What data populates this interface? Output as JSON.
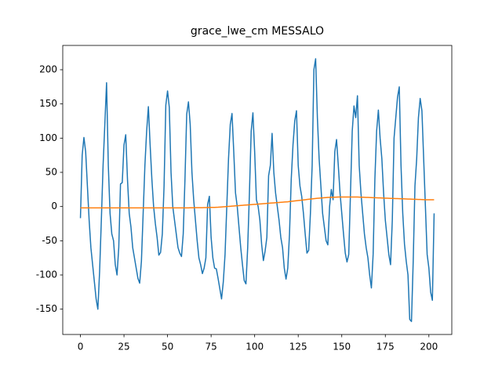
{
  "chart_data": {
    "type": "line",
    "title": "grace_lwe_cm MESSALO",
    "x": [
      0,
      1,
      2,
      3,
      4,
      5,
      6,
      7,
      8,
      9,
      10,
      11,
      12,
      13,
      14,
      15,
      16,
      17,
      18,
      19,
      20,
      21,
      22,
      23,
      24,
      25,
      26,
      27,
      28,
      29,
      30,
      31,
      32,
      33,
      34,
      35,
      36,
      37,
      38,
      39,
      40,
      41,
      42,
      43,
      44,
      45,
      46,
      47,
      48,
      49,
      50,
      51,
      52,
      53,
      54,
      55,
      56,
      57,
      58,
      59,
      60,
      61,
      62,
      63,
      64,
      65,
      66,
      67,
      68,
      69,
      70,
      71,
      72,
      73,
      74,
      75,
      76,
      77,
      78,
      79,
      80,
      81,
      82,
      83,
      84,
      85,
      86,
      87,
      88,
      89,
      90,
      91,
      92,
      93,
      94,
      95,
      96,
      97,
      98,
      99,
      100,
      101,
      102,
      103,
      104,
      105,
      106,
      107,
      108,
      109,
      110,
      111,
      112,
      113,
      114,
      115,
      116,
      117,
      118,
      119,
      120,
      121,
      122,
      123,
      124,
      125,
      126,
      127,
      128,
      129,
      130,
      131,
      132,
      133,
      134,
      135,
      136,
      137,
      138,
      139,
      140,
      141,
      142,
      143,
      144,
      145,
      146,
      147,
      148,
      149,
      150,
      151,
      152,
      153,
      154,
      155,
      156,
      157,
      158,
      159,
      160,
      161,
      162,
      163,
      164,
      165,
      166,
      167,
      168,
      169,
      170,
      171,
      172,
      173,
      174,
      175,
      176,
      177,
      178,
      179,
      180,
      181,
      182,
      183,
      184,
      185,
      186,
      187,
      188,
      189,
      190,
      191,
      192,
      193,
      194,
      195,
      196,
      197,
      198,
      199,
      200,
      201,
      202,
      203
    ],
    "series": [
      {
        "color": "#1f77b4",
        "values": [
          -17,
          75,
          101,
          80,
          30,
          -20,
          -60,
          -85,
          -110,
          -135,
          -150,
          -95,
          -20,
          60,
          120,
          181,
          60,
          -10,
          -40,
          -50,
          -85,
          -100,
          -60,
          33,
          35,
          90,
          105,
          40,
          -10,
          -30,
          -60,
          -75,
          -90,
          -105,
          -112,
          -80,
          -10,
          60,
          110,
          146,
          90,
          40,
          0,
          -25,
          -45,
          -71,
          -67,
          -40,
          30,
          148,
          169,
          145,
          50,
          0,
          -20,
          -40,
          -60,
          -68,
          -73,
          -40,
          40,
          135,
          153,
          120,
          50,
          10,
          -20,
          -50,
          -75,
          -85,
          -98,
          -90,
          -75,
          3,
          15,
          -45,
          -75,
          -90,
          -91,
          -105,
          -120,
          -135,
          -110,
          -70,
          0,
          70,
          120,
          136,
          80,
          20,
          0,
          -30,
          -60,
          -85,
          -108,
          -113,
          -60,
          20,
          110,
          137,
          80,
          10,
          0,
          -20,
          -55,
          -79,
          -65,
          -45,
          45,
          60,
          107,
          50,
          20,
          0,
          -20,
          -45,
          -60,
          -90,
          -106,
          -90,
          -40,
          40,
          90,
          125,
          140,
          60,
          30,
          15,
          -10,
          -40,
          -68,
          -64,
          -10,
          60,
          200,
          216,
          130,
          70,
          30,
          -10,
          -30,
          -50,
          -56,
          0,
          25,
          10,
          80,
          98,
          60,
          20,
          -10,
          -40,
          -68,
          -81,
          -70,
          20,
          110,
          147,
          130,
          162,
          60,
          20,
          -10,
          -40,
          -60,
          -75,
          -100,
          -119,
          -70,
          40,
          110,
          141,
          100,
          70,
          20,
          -20,
          -45,
          -70,
          -85,
          -20,
          100,
          130,
          160,
          175,
          60,
          -10,
          -55,
          -80,
          -100,
          -165,
          -168,
          -80,
          30,
          70,
          130,
          158,
          140,
          70,
          0,
          -70,
          -90,
          -125,
          -137,
          -10
        ]
      },
      {
        "color": "#ff7f0e",
        "values": [
          -2,
          -2,
          -2,
          -2,
          -2,
          -2,
          -2,
          -2,
          -2,
          -2,
          -2,
          -2,
          -2,
          -2,
          -2,
          -2,
          -2,
          -2,
          -2,
          -2,
          -2,
          -2,
          -2,
          -2,
          -2,
          -2,
          -2,
          -2,
          -2,
          -2,
          -2,
          -2,
          -2,
          -2,
          -2,
          -2,
          -2,
          -2,
          -2,
          -2,
          -2,
          -2,
          -2,
          -2,
          -2,
          -2,
          -2,
          -2,
          -2,
          -2,
          -2,
          -2,
          -2,
          -2,
          -2,
          -2,
          -2,
          -2,
          -2,
          -2,
          -1.9,
          -1.9,
          -1.9,
          -1.8,
          -1.8,
          -1.8,
          -1.7,
          -1.7,
          -1.7,
          -1.6,
          -1.6,
          -1.5,
          -1.5,
          -1.4,
          -1.4,
          -1.3,
          -1.3,
          -1.2,
          -1.1,
          -1.0,
          -0.8,
          -0.6,
          -0.4,
          -0.2,
          0,
          0.2,
          0.4,
          0.6,
          0.8,
          1.0,
          1.2,
          1.4,
          1.6,
          1.8,
          2.0,
          2.2,
          2.4,
          2.6,
          2.8,
          3.0,
          3.2,
          3.4,
          3.6,
          3.8,
          4.0,
          4.2,
          4.4,
          4.6,
          4.8,
          5.0,
          5.2,
          5.4,
          5.6,
          5.8,
          6.0,
          6.2,
          6.4,
          6.6,
          6.8,
          7.0,
          7.3,
          7.6,
          7.9,
          8.2,
          8.5,
          8.8,
          9.1,
          9.4,
          9.7,
          10,
          10.3,
          10.6,
          10.9,
          11.2,
          11.5,
          11.8,
          12.1,
          12.3,
          12.5,
          12.7,
          12.9,
          13.1,
          13.3,
          13.4,
          13.5,
          13.6,
          13.7,
          13.8,
          13.9,
          14,
          14,
          14,
          14,
          14,
          14,
          14,
          14,
          14,
          13.9,
          13.9,
          13.8,
          13.7,
          13.6,
          13.5,
          13.4,
          13.3,
          13.2,
          13.1,
          13,
          12.9,
          12.8,
          12.7,
          12.6,
          12.5,
          12.4,
          12.3,
          12.2,
          12.1,
          12,
          11.9,
          11.8,
          11.7,
          11.6,
          11.5,
          11.4,
          11.3,
          11.2,
          11.1,
          11,
          10.9,
          10.8,
          10.7,
          10.6,
          10.5,
          10.4,
          10.3,
          10.2,
          10.1,
          10,
          10,
          10,
          10,
          10,
          10
        ]
      }
    ],
    "xlim": [
      -10.15,
      213.15
    ],
    "xticks": [
      0,
      25,
      50,
      75,
      100,
      125,
      150,
      175,
      200
    ],
    "ylim": [
      -187,
      235.5
    ],
    "yticks": [
      -150,
      -100,
      -50,
      0,
      50,
      100,
      150,
      200
    ]
  }
}
